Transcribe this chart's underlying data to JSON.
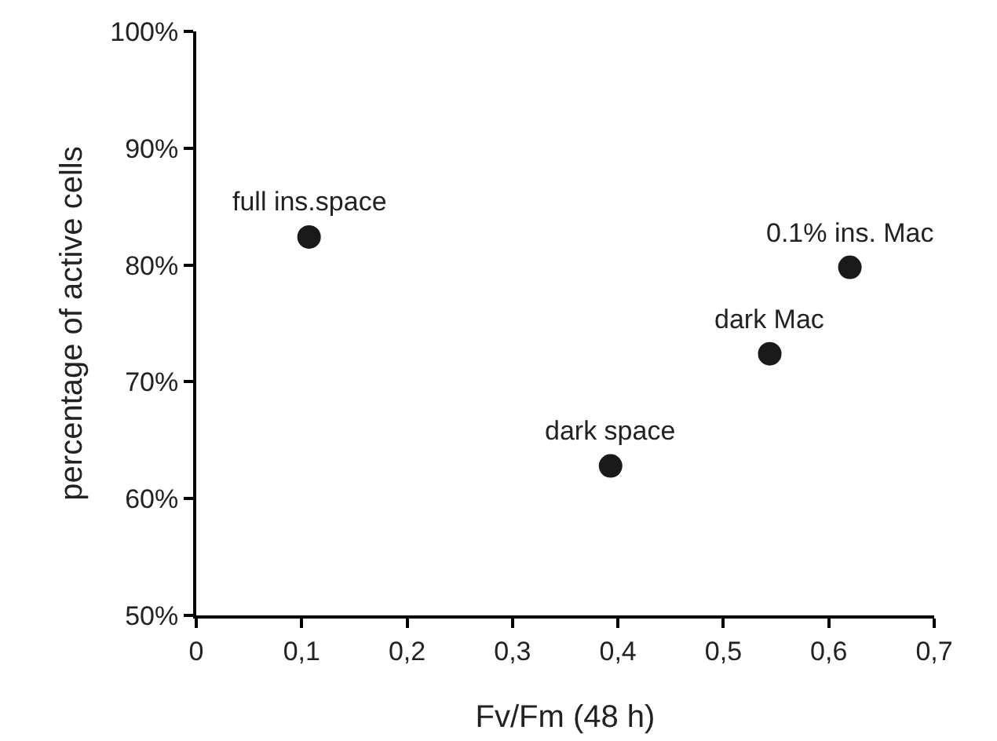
{
  "chart_data": {
    "type": "scatter",
    "xlabel": "Fv/Fm (48 h)",
    "ylabel": "percentage of active cells",
    "x": [
      0.107,
      0.393,
      0.544,
      0.62
    ],
    "series": [
      {
        "color": "#1a1a1a",
        "values": [
          82.4,
          62.8,
          72.4,
          79.8
        ]
      }
    ],
    "marker": "circle",
    "grid": false,
    "xlim": [
      0,
      0.7
    ],
    "ylim": [
      50,
      100
    ],
    "xticks": [
      0,
      {
        "value": 0.1,
        "label": "0,1"
      },
      {
        "value": 0.2,
        "label": "0,2"
      },
      {
        "value": 0.3,
        "label": "0,3"
      },
      {
        "value": 0.4,
        "label": "0,4"
      },
      {
        "value": 0.5,
        "label": "0,5"
      },
      {
        "value": 0.6,
        "label": "0,6"
      },
      {
        "value": 0.7,
        "label": "0,7"
      }
    ],
    "yticks": [
      {
        "value": 50,
        "label": "50%"
      },
      {
        "value": 60,
        "label": "60%"
      },
      {
        "value": 70,
        "label": "70%"
      },
      {
        "value": 80,
        "label": "80%"
      },
      {
        "value": 90,
        "label": "90%"
      },
      {
        "value": 100,
        "label": "100%"
      }
    ],
    "annotations": [
      {
        "text": "full ins.space",
        "x": 0.107,
        "y": 82.4
      },
      {
        "text": "dark space",
        "x": 0.393,
        "y": 62.8
      },
      {
        "text": "dark Mac",
        "x": 0.544,
        "y": 72.4
      },
      {
        "text": "0.1% ins. Mac",
        "x": 0.62,
        "y": 79.8
      }
    ]
  }
}
